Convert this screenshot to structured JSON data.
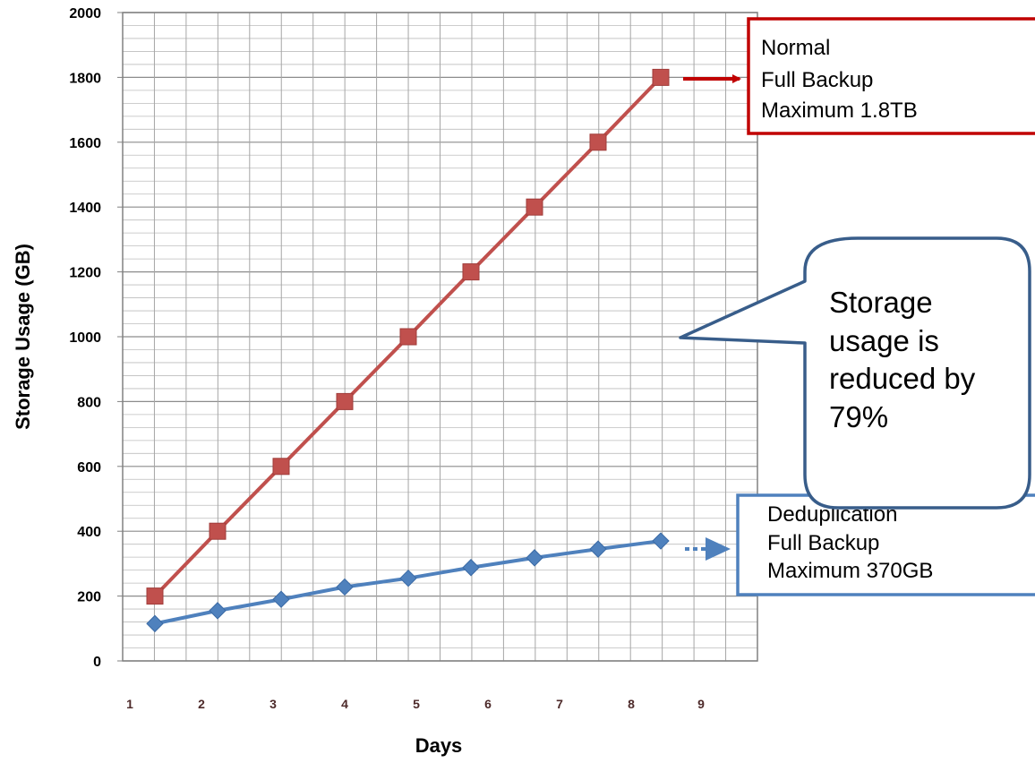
{
  "chart_data": {
    "type": "line",
    "title": "",
    "xlabel": "Days",
    "ylabel": "Storage Usage (GB)",
    "ylim": [
      0,
      2000
    ],
    "y_ticks": [
      "0",
      "200",
      "400",
      "600",
      "800",
      "1000",
      "1200",
      "1400",
      "1600",
      "1800",
      "2000"
    ],
    "x_tick_labels": [
      "1",
      "2",
      "3",
      "4",
      "5",
      "6",
      "7",
      "8",
      "9"
    ],
    "x": [
      1,
      2,
      3,
      4,
      5,
      6,
      7,
      8,
      9
    ],
    "grid": true,
    "legend": "none",
    "series": [
      {
        "values": [
          200,
          400,
          600,
          800,
          1000,
          1200,
          1400,
          1600,
          1800
        ],
        "color": "#C0504D",
        "marker": "square"
      },
      {
        "values": [
          115,
          155,
          190,
          228,
          255,
          288,
          318,
          345,
          370
        ],
        "color": "#4F81BD",
        "marker": "diamond"
      }
    ],
    "annotations": [
      {
        "lines": [
          "Normal",
          "Full Backup",
          "Maximum 1.8TB"
        ],
        "border_color": "#C00000",
        "arrow_color": "#C00000"
      },
      {
        "lines": [
          "Deduplication",
          "Full Backup",
          "Maximum  370GB"
        ],
        "border_color": "#4F81BD",
        "arrow_color": "#4F81BD"
      },
      {
        "lines": [
          "Storage",
          "usage is",
          "reduced by",
          "79%"
        ],
        "border_color": "#385D8A",
        "shape": "speech-bubble"
      }
    ]
  }
}
